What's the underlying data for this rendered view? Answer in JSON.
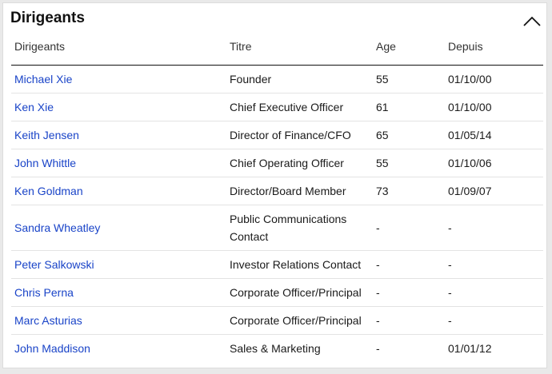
{
  "panel": {
    "title": "Dirigeants",
    "collapse_icon": "chevron-up-icon"
  },
  "table": {
    "headers": [
      "Dirigeants",
      "Titre",
      "Age",
      "Depuis"
    ],
    "rows": [
      {
        "name": "Michael Xie",
        "title": "Founder",
        "age": "55",
        "since": "01/10/00"
      },
      {
        "name": "Ken Xie",
        "title": "Chief Executive Officer",
        "age": "61",
        "since": "01/10/00"
      },
      {
        "name": "Keith Jensen",
        "title": "Director of Finance/CFO",
        "age": "65",
        "since": "01/05/14"
      },
      {
        "name": "John Whittle",
        "title": "Chief Operating Officer",
        "age": "55",
        "since": "01/10/06"
      },
      {
        "name": "Ken Goldman",
        "title": "Director/Board Member",
        "age": "73",
        "since": "01/09/07"
      },
      {
        "name": "Sandra Wheatley",
        "title": "Public Communications Contact",
        "age": "-",
        "since": "-"
      },
      {
        "name": "Peter Salkowski",
        "title": "Investor Relations Contact",
        "age": "-",
        "since": "-"
      },
      {
        "name": "Chris Perna",
        "title": "Corporate Officer/Principal",
        "age": "-",
        "since": "-"
      },
      {
        "name": "Marc Asturias",
        "title": "Corporate Officer/Principal",
        "age": "-",
        "since": "-"
      },
      {
        "name": "John Maddison",
        "title": "Sales & Marketing",
        "age": "-",
        "since": "01/01/12"
      }
    ]
  },
  "colors": {
    "link": "#1a44c8",
    "header_rule": "#111111",
    "row_rule": "#e3e3e3"
  }
}
